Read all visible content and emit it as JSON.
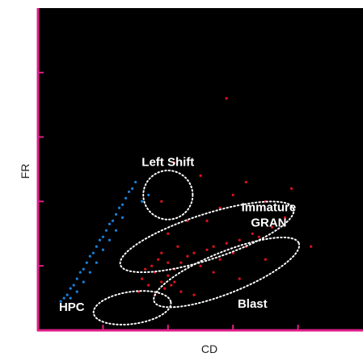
{
  "chart_data": {
    "type": "scatter",
    "xlabel": "CD",
    "ylabel": "FR",
    "xlim": [
      0,
      5
    ],
    "ylim": [
      0,
      5
    ],
    "grid": false,
    "background_color": "#000000",
    "axis_color": "#e0208a",
    "x_ticks": [
      1,
      2,
      3,
      4
    ],
    "y_ticks": [
      1,
      2,
      3,
      4
    ],
    "series": [
      {
        "name": "",
        "color": "#1a7fd6",
        "points": [
          [
            0.35,
            0.45
          ],
          [
            0.4,
            0.5
          ],
          [
            0.45,
            0.55
          ],
          [
            0.5,
            0.65
          ],
          [
            0.55,
            0.7
          ],
          [
            0.6,
            0.8
          ],
          [
            0.65,
            0.9
          ],
          [
            0.7,
            0.95
          ],
          [
            0.75,
            1.05
          ],
          [
            0.8,
            1.15
          ],
          [
            0.85,
            1.2
          ],
          [
            0.9,
            1.3
          ],
          [
            0.95,
            1.4
          ],
          [
            1.0,
            1.45
          ],
          [
            1.05,
            1.55
          ],
          [
            1.1,
            1.65
          ],
          [
            1.15,
            1.7
          ],
          [
            1.2,
            1.8
          ],
          [
            1.25,
            1.9
          ],
          [
            1.3,
            1.95
          ],
          [
            1.35,
            2.05
          ],
          [
            1.4,
            2.15
          ],
          [
            0.5,
            0.5
          ],
          [
            0.6,
            0.6
          ],
          [
            0.7,
            0.75
          ],
          [
            0.8,
            0.9
          ],
          [
            0.9,
            1.05
          ],
          [
            1.0,
            1.25
          ],
          [
            1.1,
            1.4
          ],
          [
            1.2,
            1.55
          ],
          [
            1.3,
            1.75
          ],
          [
            1.45,
            2.2
          ],
          [
            1.5,
            2.3
          ],
          [
            1.6,
            2.0
          ],
          [
            1.7,
            2.1
          ]
        ]
      },
      {
        "name": "",
        "color": "#e0101e",
        "points": [
          [
            1.6,
            0.8
          ],
          [
            1.7,
            0.7
          ],
          [
            1.8,
            0.9
          ],
          [
            1.9,
            0.75
          ],
          [
            2.0,
            0.85
          ],
          [
            2.1,
            0.95
          ],
          [
            1.75,
            1.0
          ],
          [
            1.85,
            1.1
          ],
          [
            1.95,
            0.65
          ],
          [
            2.05,
            0.7
          ],
          [
            2.2,
            1.05
          ],
          [
            2.3,
            1.15
          ],
          [
            2.4,
            1.2
          ],
          [
            2.5,
            1.0
          ],
          [
            2.6,
            1.25
          ],
          [
            2.7,
            1.3
          ],
          [
            2.8,
            1.1
          ],
          [
            2.9,
            1.35
          ],
          [
            3.0,
            1.2
          ],
          [
            3.1,
            1.4
          ],
          [
            3.2,
            1.3
          ],
          [
            3.3,
            1.5
          ],
          [
            3.4,
            1.45
          ],
          [
            3.6,
            1.6
          ],
          [
            3.8,
            1.75
          ],
          [
            2.2,
            0.6
          ],
          [
            2.4,
            0.55
          ],
          [
            1.55,
            0.6
          ],
          [
            1.65,
            0.95
          ],
          [
            2.15,
            1.3
          ],
          [
            2.6,
            1.7
          ],
          [
            2.8,
            1.9
          ],
          [
            3.0,
            2.1
          ],
          [
            3.2,
            2.3
          ],
          [
            2.5,
            2.4
          ],
          [
            1.9,
            2.0
          ],
          [
            2.1,
            2.6
          ],
          [
            3.5,
            2.0
          ],
          [
            3.9,
            2.2
          ],
          [
            2.0,
            1.5
          ],
          [
            2.3,
            1.7
          ],
          [
            2.7,
            0.9
          ],
          [
            3.1,
            0.8
          ],
          [
            3.5,
            1.1
          ],
          [
            4.2,
            1.3
          ],
          [
            2.9,
            3.6
          ],
          [
            1.9,
            1.2
          ],
          [
            2.0,
            1.05
          ],
          [
            2.1,
            0.75
          ],
          [
            1.8,
            0.55
          ]
        ]
      }
    ],
    "annotations": [
      {
        "label": "Left Shift",
        "cx": 2.0,
        "cy": 2.1,
        "rx": 0.38,
        "ry": 0.38,
        "angle": 0,
        "label_x": 2.0,
        "label_y": 2.55
      },
      {
        "label": "Immature\nGRAN",
        "cx": 2.6,
        "cy": 1.45,
        "rx": 1.4,
        "ry": 0.35,
        "angle": -18,
        "label_x": 3.55,
        "label_y": 1.85
      },
      {
        "label": "Blast",
        "cx": 2.9,
        "cy": 0.9,
        "rx": 1.2,
        "ry": 0.32,
        "angle": -22,
        "label_x": 3.3,
        "label_y": 0.35
      },
      {
        "label": "HPC",
        "cx": 1.45,
        "cy": 0.35,
        "rx": 0.6,
        "ry": 0.25,
        "angle": -8,
        "label_x": 0.52,
        "label_y": 0.3
      }
    ]
  }
}
